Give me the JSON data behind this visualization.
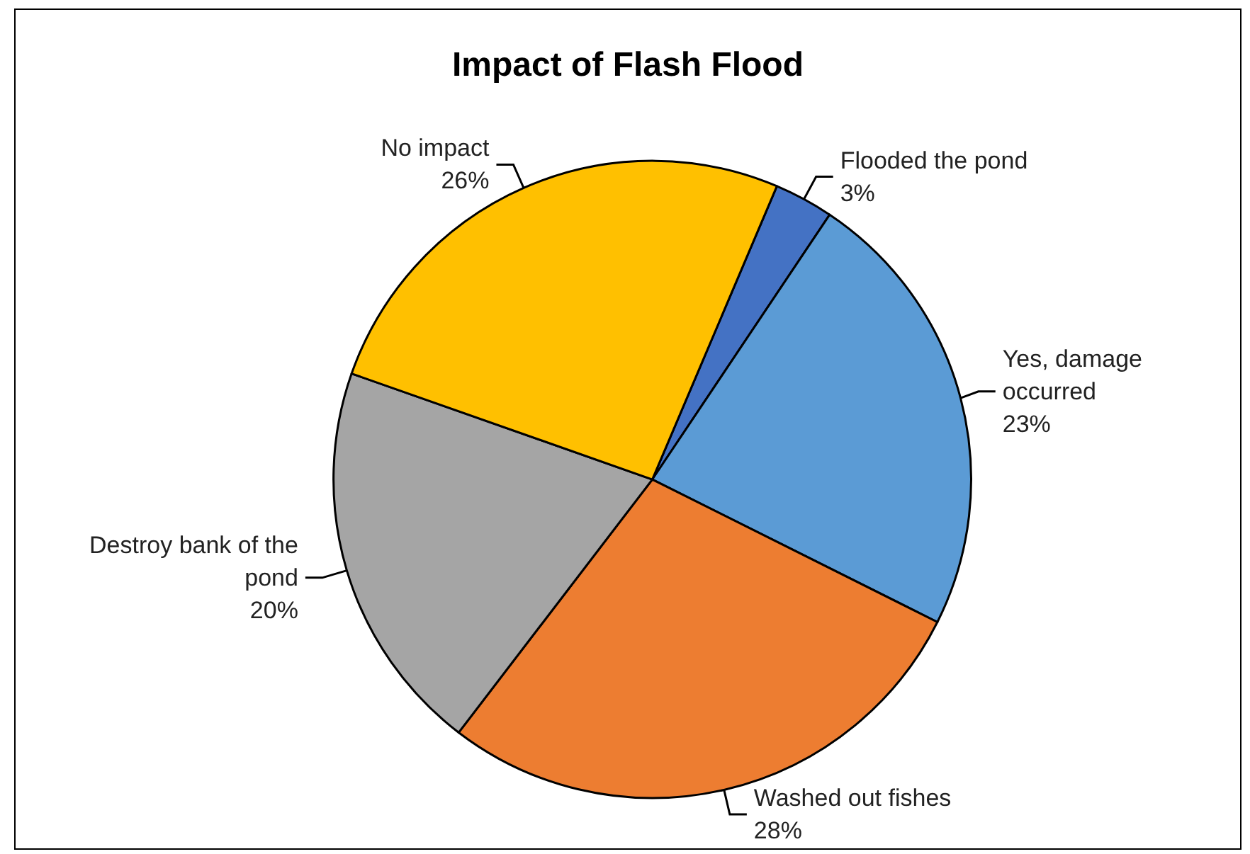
{
  "chart_data": {
    "type": "pie",
    "title": "Impact of Flash Flood",
    "categories": [
      "Flooded the pond",
      "Yes, damage occurred",
      "Washed out fishes",
      "Destroy bank of the pond",
      "No impact"
    ],
    "values": [
      3,
      23,
      28,
      20,
      26
    ],
    "value_labels": [
      "3%",
      "23%",
      "28%",
      "20%",
      "26%"
    ],
    "colors": [
      "#4472c4",
      "#5b9bd5",
      "#ed7d31",
      "#a5a5a5",
      "#ffc000"
    ],
    "legend": false
  }
}
